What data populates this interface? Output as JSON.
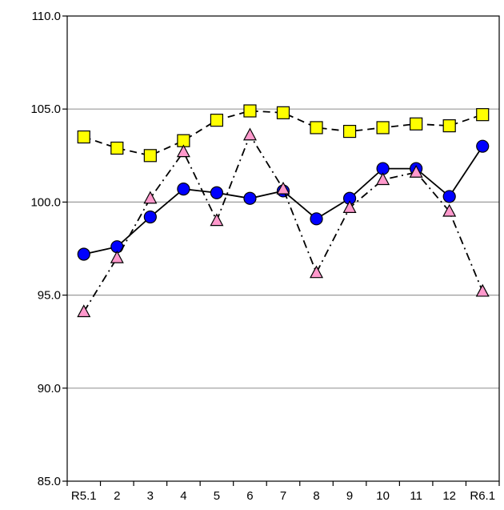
{
  "chart_data": {
    "type": "line",
    "categories": [
      "R5.1",
      "2",
      "3",
      "4",
      "5",
      "6",
      "7",
      "8",
      "9",
      "10",
      "11",
      "12",
      "R6.1"
    ],
    "ylim": [
      85.0,
      110.0
    ],
    "yticks": [
      "85.0",
      "90.0",
      "95.0",
      "100.0",
      "105.0",
      "110.0"
    ],
    "grid": "horizontal",
    "legend": "none",
    "series": [
      {
        "values": [
          103.5,
          102.9,
          102.5,
          103.3,
          104.4,
          104.9,
          104.8,
          104.0,
          103.8,
          104.0,
          104.2,
          104.1,
          104.7
        ],
        "marker": "square",
        "line_style": "dashed",
        "marker_fill": "#ffff00",
        "marker_stroke": "#000000"
      },
      {
        "values": [
          97.2,
          97.6,
          99.2,
          100.7,
          100.5,
          100.2,
          100.6,
          99.1,
          100.2,
          101.8,
          101.8,
          100.3,
          103.0
        ],
        "marker": "circle",
        "line_style": "solid",
        "marker_fill": "#0000ff",
        "marker_stroke": "#000000"
      },
      {
        "values": [
          94.1,
          97.0,
          100.2,
          102.7,
          99.0,
          103.6,
          100.7,
          96.2,
          99.7,
          101.2,
          101.6,
          99.5,
          95.2
        ],
        "marker": "triangle",
        "line_style": "dash-dot",
        "marker_fill": "#ff99cc",
        "marker_stroke": "#000000"
      }
    ]
  }
}
